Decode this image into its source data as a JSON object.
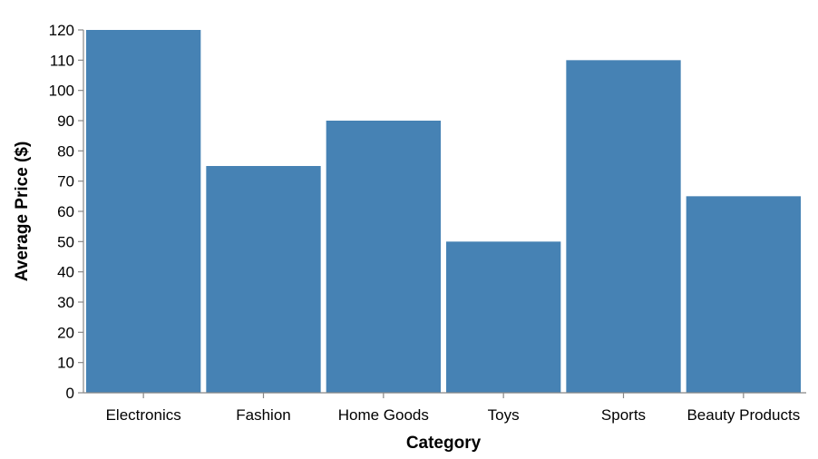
{
  "chart_data": {
    "type": "bar",
    "title": "",
    "xlabel": "Category",
    "ylabel": "Average Price ($)",
    "categories": [
      "Electronics",
      "Fashion",
      "Home Goods",
      "Toys",
      "Sports",
      "Beauty Products"
    ],
    "values": [
      120,
      75,
      90,
      50,
      110,
      65
    ],
    "ylim": [
      0,
      120
    ],
    "yticks": [
      0,
      10,
      20,
      30,
      40,
      50,
      60,
      70,
      80,
      90,
      100,
      110,
      120
    ],
    "grid": false,
    "legend": "none",
    "bar_color": "#4682b4",
    "axis_color": "#888888"
  }
}
